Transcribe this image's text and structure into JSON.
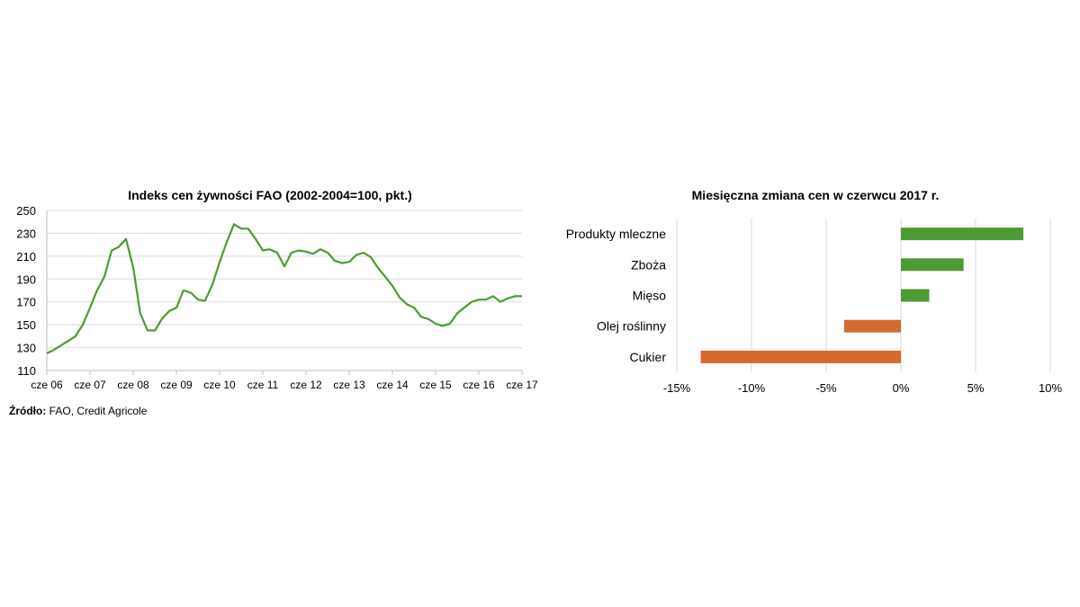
{
  "source": {
    "label": "Źródło:",
    "text": " FAO, Credit Agricole"
  },
  "colors": {
    "green": "#4e9a34",
    "orange": "#d5692f",
    "grid": "#d9d9d9",
    "axis": "#bfbfbf"
  },
  "chart_data": [
    {
      "type": "line",
      "title": "Indeks cen żywności FAO (2002-2004=100, pkt.)",
      "ylim": [
        110,
        250
      ],
      "yticks": [
        110,
        130,
        150,
        170,
        190,
        210,
        230,
        250
      ],
      "xlim": [
        2006.417,
        2017.417
      ],
      "xtick_labels": [
        "cze 06",
        "cze 07",
        "cze 08",
        "cze 09",
        "cze 10",
        "cze 11",
        "cze 12",
        "cze 13",
        "cze 14",
        "cze 15",
        "cze 16",
        "cze 17"
      ],
      "grid": true,
      "series": [
        {
          "color": "#4e9a34",
          "x": [
            2006.42,
            2006.58,
            2006.75,
            2006.92,
            2007.08,
            2007.25,
            2007.42,
            2007.58,
            2007.75,
            2007.92,
            2008.08,
            2008.25,
            2008.42,
            2008.58,
            2008.75,
            2008.92,
            2009.08,
            2009.25,
            2009.42,
            2009.58,
            2009.75,
            2009.92,
            2010.08,
            2010.25,
            2010.42,
            2010.58,
            2010.75,
            2010.92,
            2011.08,
            2011.25,
            2011.42,
            2011.58,
            2011.75,
            2011.92,
            2012.08,
            2012.25,
            2012.42,
            2012.58,
            2012.75,
            2012.92,
            2013.08,
            2013.25,
            2013.42,
            2013.58,
            2013.75,
            2013.92,
            2014.08,
            2014.25,
            2014.42,
            2014.58,
            2014.75,
            2014.92,
            2015.08,
            2015.25,
            2015.42,
            2015.58,
            2015.75,
            2015.92,
            2016.08,
            2016.25,
            2016.42,
            2016.58,
            2016.75,
            2016.92,
            2017.08,
            2017.25,
            2017.42
          ],
          "y": [
            125,
            128,
            132,
            136,
            140,
            150,
            165,
            180,
            192,
            215,
            218,
            225,
            200,
            160,
            145,
            145,
            155,
            162,
            165,
            180,
            178,
            172,
            171,
            185,
            205,
            222,
            238,
            234,
            234,
            225,
            215,
            216,
            213,
            201,
            213,
            215,
            214,
            212,
            216,
            213,
            206,
            204,
            205,
            211,
            213,
            209,
            200,
            192,
            184,
            174,
            168,
            165,
            157,
            155,
            151,
            149,
            151,
            160,
            165,
            170,
            172,
            172,
            175,
            170,
            173,
            175,
            175
          ]
        }
      ]
    },
    {
      "type": "bar",
      "orientation": "horizontal",
      "title": "Miesięczna zmiana cen w czerwcu 2017 r.",
      "categories": [
        "Produkty mleczne",
        "Zboża",
        "Mięso",
        "Olej roślinny",
        "Cukier"
      ],
      "values": [
        8.2,
        4.2,
        1.9,
        -3.8,
        -13.4
      ],
      "xlim": [
        -15,
        10
      ],
      "xticks": [
        -15,
        -10,
        -5,
        0,
        5,
        10
      ],
      "xtick_labels": [
        "-15%",
        "-10%",
        "-5%",
        "0%",
        "5%",
        "10%"
      ],
      "grid": true,
      "positive_color": "#4e9a34",
      "negative_color": "#d5692f"
    }
  ]
}
